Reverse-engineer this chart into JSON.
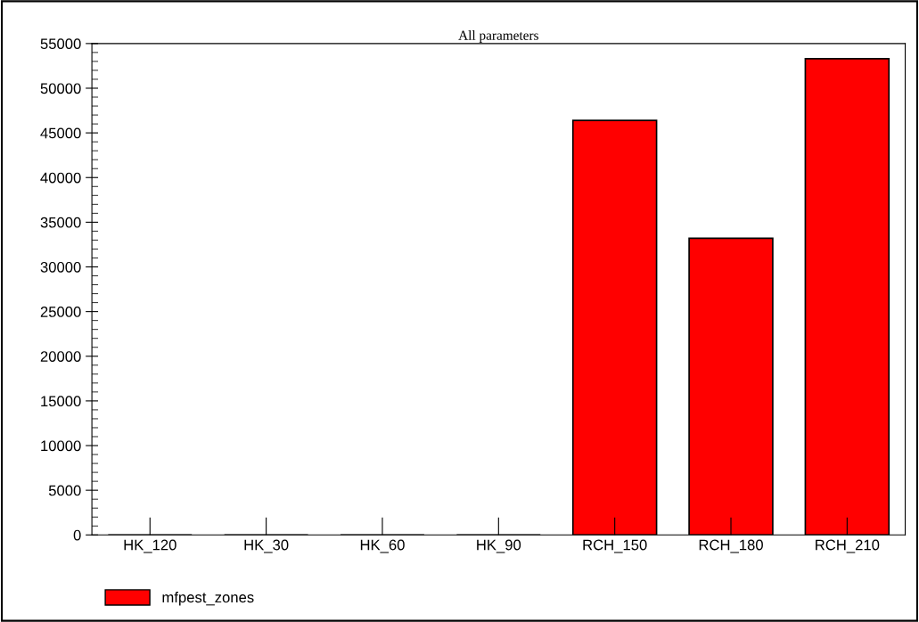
{
  "chart_data": {
    "type": "bar",
    "title": "All parameters",
    "categories": [
      "HK_120",
      "HK_30",
      "HK_60",
      "HK_90",
      "RCH_150",
      "RCH_180",
      "RCH_210"
    ],
    "series": [
      {
        "name": "mfpest_zones",
        "color": "#ff0000",
        "values": [
          0,
          0,
          0,
          0,
          46400,
          33200,
          53300
        ]
      }
    ],
    "ylim": [
      0,
      55000
    ],
    "yticks": [
      0,
      5000,
      10000,
      15000,
      20000,
      25000,
      30000,
      35000,
      40000,
      45000,
      50000,
      55000
    ],
    "grid": false,
    "legend": "bottom left"
  }
}
